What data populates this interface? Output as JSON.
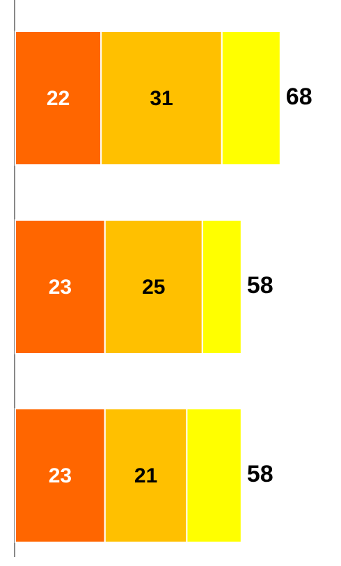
{
  "chart_data": {
    "type": "stacked-bar-horizontal",
    "series": [
      {
        "color": "#ff6600",
        "values": [
          22,
          23,
          23
        ],
        "labels": true,
        "label_color": "#ffffff"
      },
      {
        "color": "#ffc000",
        "values": [
          31,
          25,
          21
        ],
        "labels": true,
        "label_color": "#000000"
      },
      {
        "color": "#ffff00",
        "values": [
          15,
          10,
          14
        ],
        "labels": false
      }
    ],
    "totals": [
      68,
      58,
      58
    ]
  }
}
